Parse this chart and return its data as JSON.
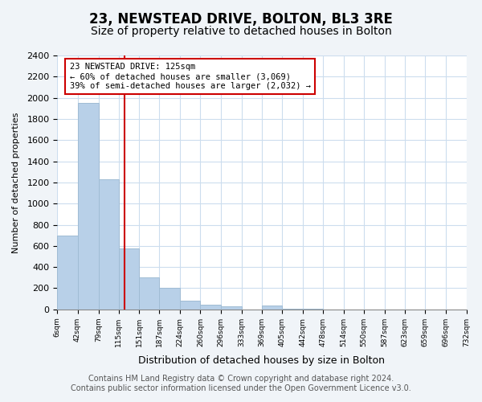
{
  "title": "23, NEWSTEAD DRIVE, BOLTON, BL3 3RE",
  "subtitle": "Size of property relative to detached houses in Bolton",
  "xlabel": "Distribution of detached houses by size in Bolton",
  "ylabel": "Number of detached properties",
  "bar_color": "#b8d0e8",
  "bar_edgecolor": "#a0bcd4",
  "annotation_box_color": "#ffffff",
  "annotation_box_edgecolor": "#cc0000",
  "vline_color": "#cc0000",
  "vline_x": 125,
  "annotation_line1": "23 NEWSTEAD DRIVE: 125sqm",
  "annotation_line2": "← 60% of detached houses are smaller (3,069)",
  "annotation_line3": "39% of semi-detached houses are larger (2,032) →",
  "bin_edges": [
    6,
    42,
    79,
    115,
    151,
    187,
    224,
    260,
    296,
    333,
    369,
    405,
    442,
    478,
    514,
    550,
    587,
    623,
    659,
    696,
    732
  ],
  "bin_heights": [
    700,
    1950,
    1230,
    575,
    300,
    200,
    80,
    45,
    30,
    0,
    35,
    5,
    5,
    0,
    0,
    0,
    0,
    0,
    0,
    0
  ],
  "xlim": [
    6,
    732
  ],
  "ylim": [
    0,
    2400
  ],
  "yticks": [
    0,
    200,
    400,
    600,
    800,
    1000,
    1200,
    1400,
    1600,
    1800,
    2000,
    2200,
    2400
  ],
  "xtick_labels": [
    "6sqm",
    "42sqm",
    "79sqm",
    "115sqm",
    "151sqm",
    "187sqm",
    "224sqm",
    "260sqm",
    "296sqm",
    "333sqm",
    "369sqm",
    "405sqm",
    "442sqm",
    "478sqm",
    "514sqm",
    "550sqm",
    "587sqm",
    "623sqm",
    "659sqm",
    "696sqm",
    "732sqm"
  ],
  "footer_line1": "Contains HM Land Registry data © Crown copyright and database right 2024.",
  "footer_line2": "Contains public sector information licensed under the Open Government Licence v3.0.",
  "background_color": "#f0f4f8",
  "plot_bg_color": "#ffffff",
  "grid_color": "#ccddee",
  "title_fontsize": 12,
  "subtitle_fontsize": 10,
  "footer_fontsize": 7
}
